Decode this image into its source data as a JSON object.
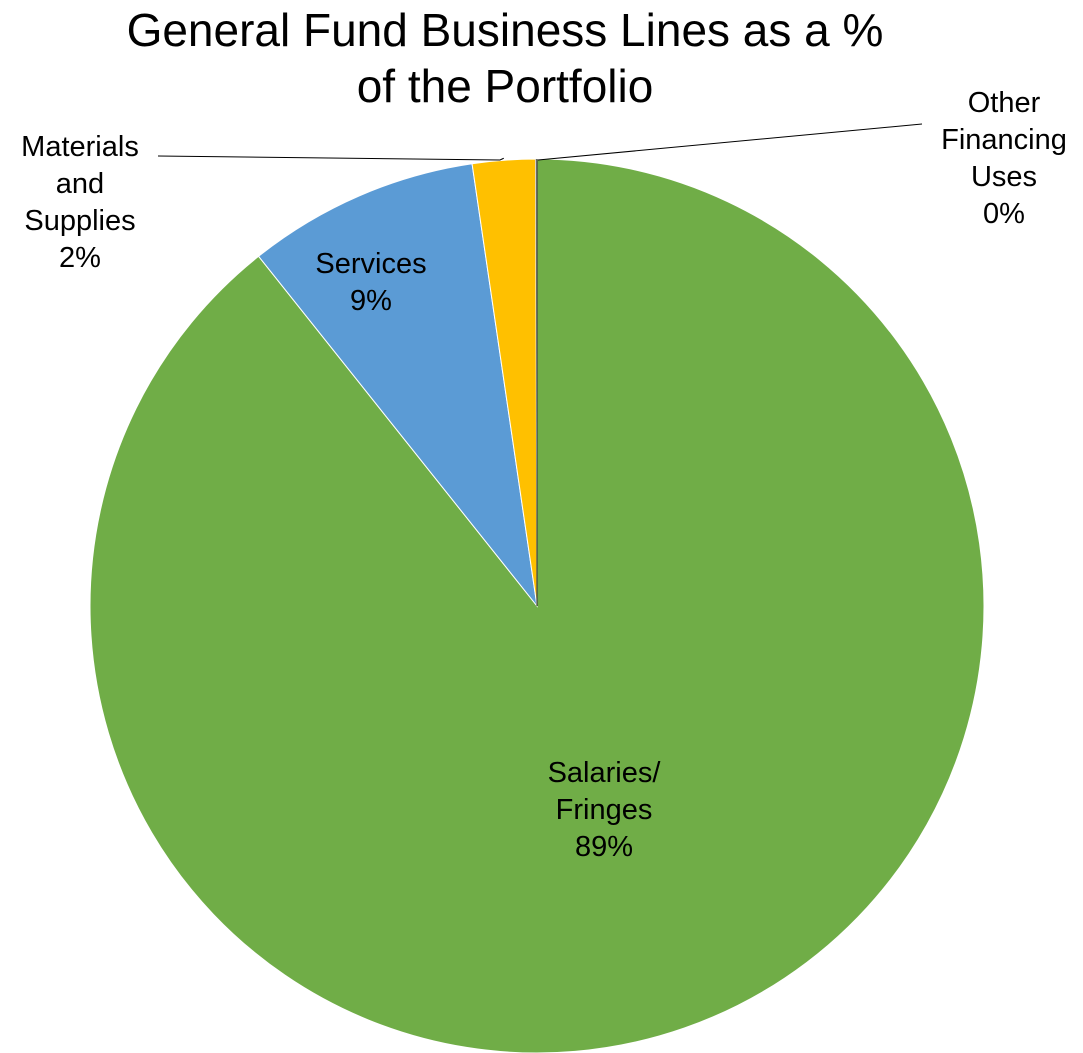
{
  "chart_data": {
    "type": "pie",
    "title": "General Fund Business Lines as a % of the Portfolio",
    "title_lines": [
      "General Fund Business Lines as a %",
      "of the Portfolio"
    ],
    "slices": [
      {
        "name": "Salaries/Fringes",
        "label_lines": [
          "Salaries/",
          "Fringes"
        ],
        "value": 89,
        "value_label": "89%",
        "color": "#70AD47"
      },
      {
        "name": "Services",
        "label_lines": [
          "Services"
        ],
        "value": 9,
        "value_label": "9%",
        "color": "#5B9BD5"
      },
      {
        "name": "Materials and Supplies",
        "label_lines": [
          "Materials",
          "and",
          "Supplies"
        ],
        "value": 2,
        "value_label": "2%",
        "color": "#FFC000"
      },
      {
        "name": "Other Financing Uses",
        "label_lines": [
          "Other",
          "Financing",
          "Uses"
        ],
        "value": 0,
        "value_label": "0%",
        "color": "#A5A5A5"
      }
    ],
    "legend": "none",
    "data_labels": "category and percent"
  }
}
